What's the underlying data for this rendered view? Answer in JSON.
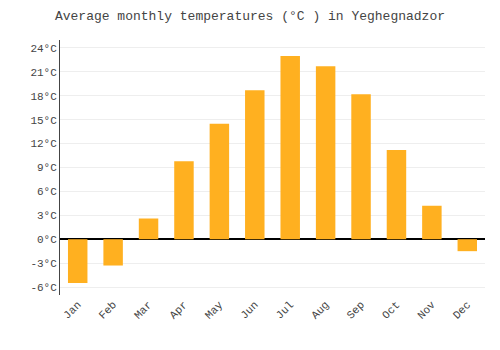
{
  "chart_data": {
    "type": "bar",
    "title": "Average monthly temperatures (°C ) in Yeghegnadzor",
    "categories": [
      "Jan",
      "Feb",
      "Mar",
      "Apr",
      "May",
      "Jun",
      "Jul",
      "Aug",
      "Sep",
      "Oct",
      "Nov",
      "Dec"
    ],
    "values": [
      -5.5,
      -3.3,
      2.6,
      9.8,
      14.5,
      18.7,
      23.0,
      21.7,
      18.2,
      11.2,
      4.2,
      -1.5
    ],
    "color": "#FFB020",
    "ylim": [
      -7,
      25
    ],
    "yticks": [
      {
        "value": -6,
        "label": "-6°C"
      },
      {
        "value": -3,
        "label": "-3°C"
      },
      {
        "value": 0,
        "label": "0°C"
      },
      {
        "value": 3,
        "label": "3°C"
      },
      {
        "value": 6,
        "label": "6°C"
      },
      {
        "value": 9,
        "label": "9°C"
      },
      {
        "value": 12,
        "label": "12°C"
      },
      {
        "value": 15,
        "label": "15°C"
      },
      {
        "value": 18,
        "label": "18°C"
      },
      {
        "value": 21,
        "label": "21°C"
      },
      {
        "value": 24,
        "label": "24°C"
      }
    ],
    "grid": true
  }
}
